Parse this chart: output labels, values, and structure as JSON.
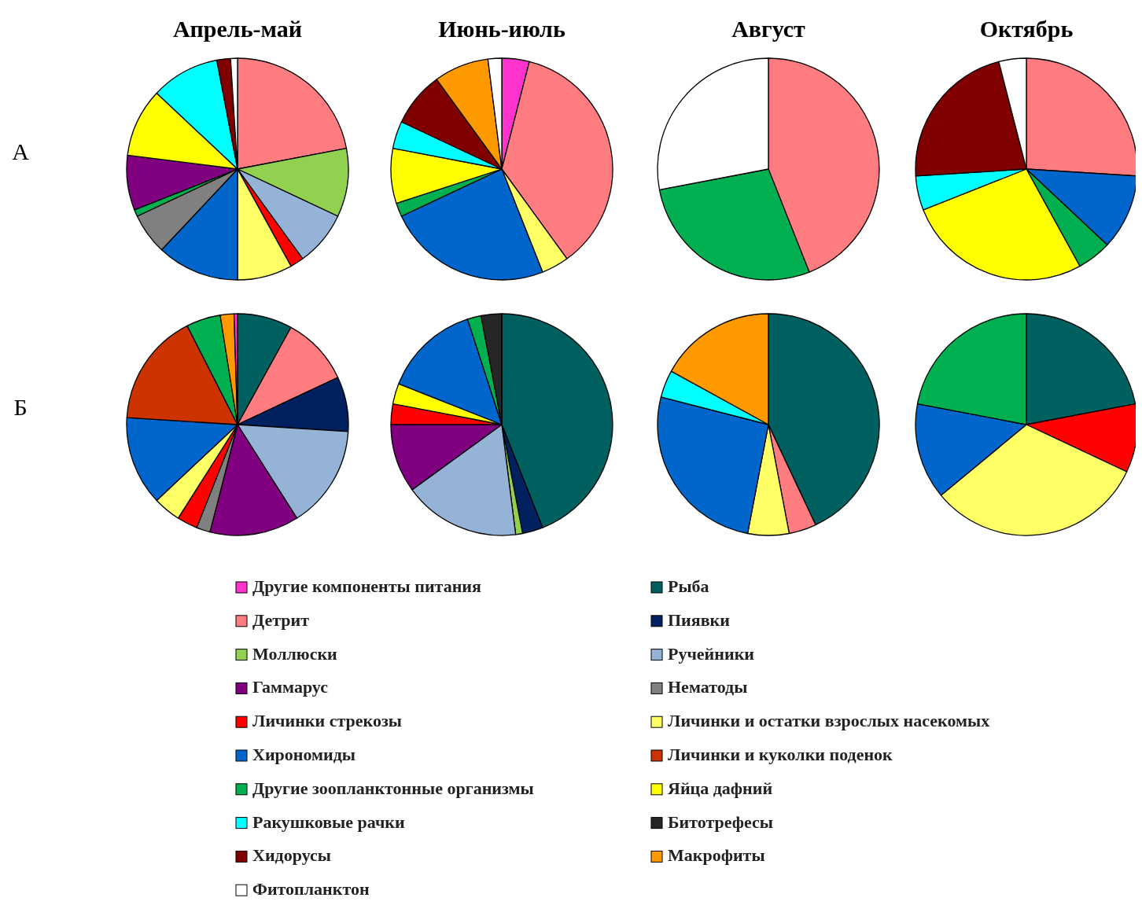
{
  "chart_data": [
    {
      "type": "pie",
      "title": "Апрель-май",
      "ylabel": "А",
      "categories": [
        null,
        null,
        null,
        null,
        null,
        null,
        null,
        null,
        null,
        null,
        null,
        null,
        null
      ],
      "values": [
        22,
        10,
        8,
        2,
        8,
        12,
        6,
        1,
        8,
        10,
        10,
        2,
        1
      ],
      "colors": [
        "#ff7c80",
        "#92d050",
        "#95b3d7",
        "#ff0000",
        "#ffff66",
        "#0066cc",
        "#808080",
        "#00b050",
        "#800080",
        "#ffff00",
        "#00ffff",
        "#800000",
        "#ffffff"
      ]
    },
    {
      "type": "pie",
      "title": "Июнь-июль",
      "categories": [
        null,
        null,
        null,
        null,
        null,
        null,
        null,
        null,
        null,
        null
      ],
      "values": [
        4,
        36,
        4,
        24,
        2,
        8,
        4,
        8,
        8,
        2
      ],
      "colors": [
        "#ff33cc",
        "#ff7c80",
        "#ffff66",
        "#0066cc",
        "#00b050",
        "#ffff00",
        "#00ffff",
        "#800000",
        "#ff9900",
        "#ffffff"
      ]
    },
    {
      "type": "pie",
      "title": "Август",
      "categories": [
        null,
        null,
        null
      ],
      "values": [
        44,
        28,
        28
      ],
      "colors": [
        "#ff7c80",
        "#00b050",
        "#ffffff"
      ]
    },
    {
      "type": "pie",
      "title": "Октябрь",
      "categories": [
        null,
        null,
        null,
        null,
        null,
        null,
        null
      ],
      "values": [
        26,
        11,
        5,
        27,
        5,
        22,
        4
      ],
      "colors": [
        "#ff7c80",
        "#0066cc",
        "#00b050",
        "#ffff00",
        "#00ffff",
        "#800000",
        "#ffffff"
      ]
    },
    {
      "type": "pie",
      "ylabel": "Б",
      "categories": [
        null,
        null,
        null,
        null,
        null,
        null,
        null,
        null,
        null,
        null,
        null,
        null,
        null
      ],
      "values": [
        8,
        10,
        8,
        15,
        13,
        2,
        3,
        4,
        13,
        16.5,
        5,
        2,
        0.5
      ],
      "colors": [
        "#006060",
        "#ff7c80",
        "#002060",
        "#95b3d7",
        "#800080",
        "#808080",
        "#ff0000",
        "#ffff66",
        "#0066cc",
        "#cc3300",
        "#00b050",
        "#ff9900",
        "#ff33cc"
      ]
    },
    {
      "type": "pie",
      "categories": [
        null,
        null,
        null,
        null,
        null,
        null,
        null,
        null,
        null,
        null
      ],
      "values": [
        44,
        3,
        1,
        17,
        10,
        3,
        3,
        14,
        2,
        3
      ],
      "colors": [
        "#006060",
        "#002060",
        "#92d050",
        "#95b3d7",
        "#800080",
        "#ff0000",
        "#ffff00",
        "#0066cc",
        "#00b050",
        "#262626"
      ]
    },
    {
      "type": "pie",
      "categories": [
        null,
        null,
        null,
        null,
        null,
        null
      ],
      "values": [
        43,
        4,
        6,
        26,
        4,
        17
      ],
      "colors": [
        "#006060",
        "#ff7c80",
        "#ffff66",
        "#0066cc",
        "#00ffff",
        "#ff9900"
      ]
    },
    {
      "type": "pie",
      "categories": [
        null,
        null,
        null,
        null,
        null
      ],
      "values": [
        22,
        10,
        32,
        14,
        22
      ],
      "colors": [
        "#006060",
        "#ff0000",
        "#ffff66",
        "#0066cc",
        "#00b050"
      ]
    },
    {
      "type": "other",
      "categories": [
        "Другие компоненты питания",
        "Детрит",
        "Моллюски",
        "Гаммарус",
        "Личинки стрекозы",
        "Хирономиды",
        "Другие зоопланктонные организмы",
        "Ракушковые рачки",
        "Хидорусы",
        "Фитопланктон",
        "Рыба",
        "Пиявки",
        "Ручейники",
        "Нематоды",
        "Личинки и остатки взрослых насекомых",
        "Личинки и куколки поденок",
        "Яйца дафний",
        "Битотрефесы",
        "Макрофиты"
      ],
      "colors": [
        "#ff33cc",
        "#ff7c80",
        "#92d050",
        "#800080",
        "#ff0000",
        "#0066cc",
        "#00b050",
        "#00ffff",
        "#800000",
        "#ffffff",
        "#006060",
        "#002060",
        "#95b3d7",
        "#808080",
        "#ffff66",
        "#cc3300",
        "#ffff00",
        "#262626",
        "#ff9900"
      ]
    }
  ]
}
